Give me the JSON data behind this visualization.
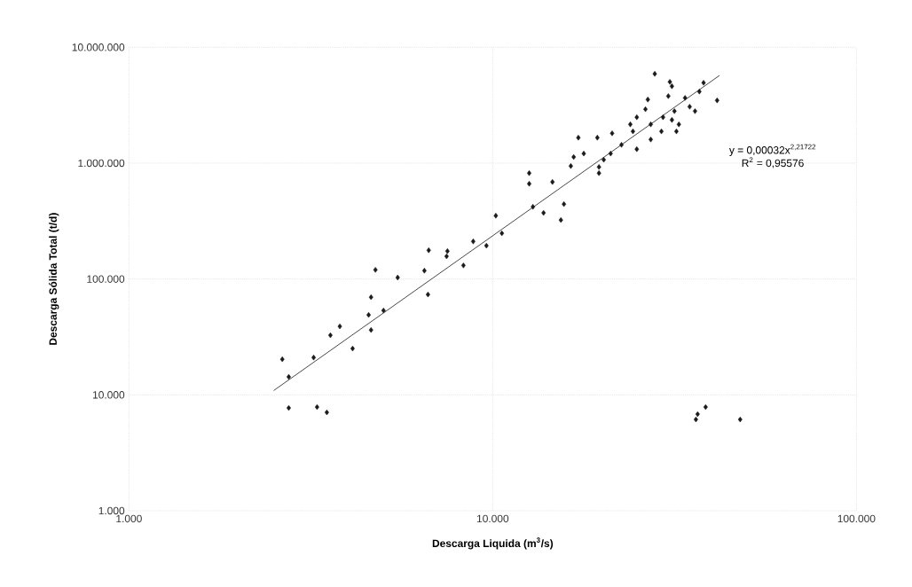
{
  "chart_data": {
    "type": "scatter",
    "xlabel": "Descarga Liquida (m$^{3}$/s)",
    "ylabel": "Descarga Sólida Total (t/d)",
    "log": "xy",
    "grid": true,
    "marker": "diamond",
    "xlim": [
      1000,
      100000
    ],
    "ylim": [
      1000,
      10000000
    ],
    "xticks": [
      {
        "value": 1000,
        "label": "1.000"
      },
      {
        "value": 10000,
        "label": "10.000"
      },
      {
        "value": 100000,
        "label": "100.000"
      }
    ],
    "yticks": [
      {
        "value": 1000,
        "label": "1.000"
      },
      {
        "value": 10000,
        "label": "10.000"
      },
      {
        "value": 100000,
        "label": "100.000"
      },
      {
        "value": 1000000,
        "label": "1.000.000"
      },
      {
        "value": 10000000,
        "label": "10.000.000"
      }
    ],
    "annotations": [
      "y = 0,00032x$^{2,21722}$",
      "R$^{2}$ = 0,95576"
    ],
    "series": [
      {
        "color": "#1a1a1a",
        "x": [
          2640,
          2750,
          2750,
          3290,
          3500,
          3220,
          3580,
          3800,
          4120,
          4630,
          4760,
          4560,
          5010,
          4630,
          5480,
          6490,
          6640,
          6670,
          7510,
          7470,
          8310,
          8840,
          9610,
          10600,
          10200,
          12600,
          12600,
          14600,
          12900,
          13800,
          15700,
          15400,
          16400,
          16700,
          17800,
          17200,
          19400,
          19600,
          19600,
          20200,
          21100,
          21300,
          22600,
          24900,
          24300,
          23900,
          24900,
          26300,
          27200,
          27200,
          29100,
          29400,
          26700,
          27900,
          30400,
          30700,
          31100,
          31100,
          31600,
          32000,
          32500,
          33800,
          34800,
          36000,
          37000,
          38000,
          41400,
          38500,
          36600,
          36200,
          47900
        ],
        "values": [
          20300,
          14300,
          7710,
          7850,
          7060,
          21000,
          32700,
          39000,
          25100,
          69700,
          120000,
          49000,
          53500,
          36300,
          103000,
          118000,
          73500,
          177000,
          174000,
          157000,
          131000,
          211000,
          194000,
          248000,
          352000,
          820000,
          664000,
          688000,
          420000,
          372000,
          443000,
          323000,
          944000,
          1130000,
          1210000,
          1660000,
          1660000,
          927000,
          820000,
          1070000,
          1210000,
          1810000,
          1440000,
          1320000,
          1880000,
          2160000,
          2490000,
          2920000,
          2160000,
          1600000,
          1880000,
          2490000,
          3540000,
          5900000,
          3790000,
          5030000,
          4610000,
          2360000,
          2810000,
          1880000,
          2160000,
          3660000,
          3070000,
          2810000,
          4150000,
          4940000,
          3480000,
          7850,
          6820,
          6130,
          6130
        ]
      },
      {
        "type": "line",
        "marker": "none",
        "color": "#1a1a1a",
        "line_style": "solid",
        "x": [
          2500,
          42000
        ],
        "values": [
          10900,
          5700000
        ]
      }
    ]
  }
}
